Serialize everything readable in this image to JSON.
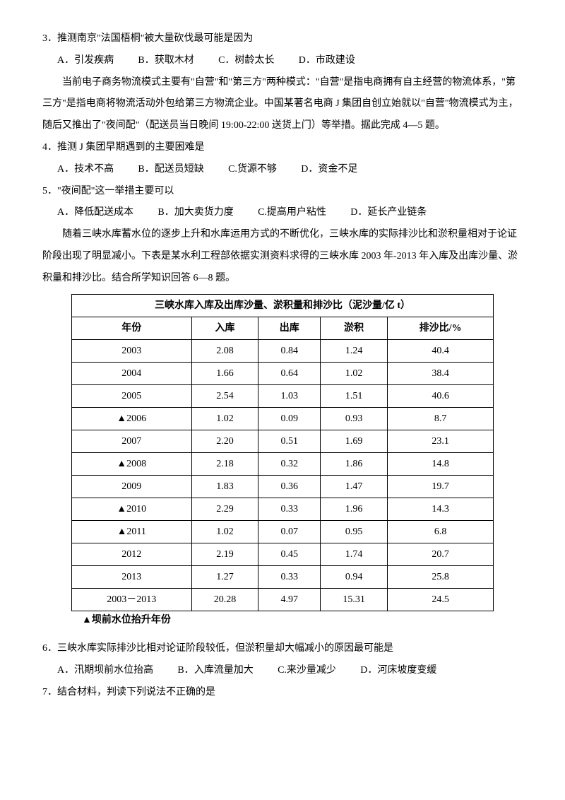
{
  "q3": {
    "question": "3．推测南京\"法国梧桐\"被大量砍伐最可能是因为",
    "opts": {
      "a": "A．引发疾病",
      "b": "B．获取木材",
      "c": "C．树龄太长",
      "d": "D．市政建设"
    }
  },
  "passage1": "　　当前电子商务物流模式主要有\"自营\"和\"第三方\"两种模式：\"自营\"是指电商拥有自主经营的物流体系，\"第三方\"是指电商将物流活动外包给第三方物流企业。中国某著名电商 J 集团自创立始就以\"自营\"物流模式为主，随后又推出了\"夜间配\"（配送员当日晚间 19:00-22:00 送货上门）等举措。据此完成 4—5 题。",
  "q4": {
    "question": "4．推测 J 集团早期遇到的主要困难是",
    "opts": {
      "a": "A．技术不高",
      "b": "B．配送员短缺",
      "c": "C.货源不够",
      "d": "D．资金不足"
    }
  },
  "q5": {
    "question": "5．\"夜间配\"这一举措主要可以",
    "opts": {
      "a": "A．降低配送成本",
      "b": "B．加大卖货力度",
      "c": "C.提高用户粘性",
      "d": "D．延长产业链条"
    }
  },
  "passage2": "　　随着三峡水库蓄水位的逐步上升和水库运用方式的不断优化，三峡水库的实际排沙比和淤积量相对于论证阶段出现了明显减小。下表是某水利工程部依据实测资料求得的三峡水库 2003 年-2013 年入库及出库沙量、淤积量和排沙比。结合所学知识回答 6—8 题。",
  "table": {
    "title": "三峡水库入库及出库沙量、淤积量和排沙比（泥沙量/亿 t）",
    "headers": [
      "年份",
      "入库",
      "出库",
      "淤积",
      "排沙比/%"
    ],
    "rows": [
      [
        "2003",
        "2.08",
        "0.84",
        "1.24",
        "40.4"
      ],
      [
        "2004",
        "1.66",
        "0.64",
        "1.02",
        "38.4"
      ],
      [
        "2005",
        "2.54",
        "1.03",
        "1.51",
        "40.6"
      ],
      [
        "▲2006",
        "1.02",
        "0.09",
        "0.93",
        "8.7"
      ],
      [
        "2007",
        "2.20",
        "0.51",
        "1.69",
        "23.1"
      ],
      [
        "▲2008",
        "2.18",
        "0.32",
        "1.86",
        "14.8"
      ],
      [
        "2009",
        "1.83",
        "0.36",
        "1.47",
        "19.7"
      ],
      [
        "▲2010",
        "2.29",
        "0.33",
        "1.96",
        "14.3"
      ],
      [
        "▲2011",
        "1.02",
        "0.07",
        "0.95",
        "6.8"
      ],
      [
        "2012",
        "2.19",
        "0.45",
        "1.74",
        "20.7"
      ],
      [
        "2013",
        "1.27",
        "0.33",
        "0.94",
        "25.8"
      ],
      [
        "2003－2013",
        "20.28",
        "4.97",
        "15.31",
        "24.5"
      ]
    ],
    "note": "▲坝前水位抬升年份"
  },
  "q6": {
    "question": "6．三峡水库实际排沙比相对论证阶段较低，但淤积量却大幅减小的原因最可能是",
    "opts": {
      "a": "A．汛期坝前水位抬高",
      "b": "B．入库流量加大",
      "c": "C.来沙量减少",
      "d": "D．河床坡度变缓"
    }
  },
  "q7": {
    "question": "7．结合材料，判读下列说法不正确的是"
  }
}
